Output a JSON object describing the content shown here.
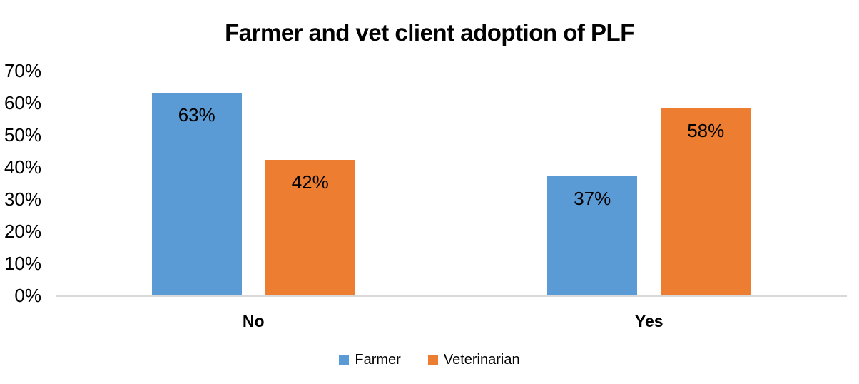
{
  "title": "Farmer and vet client adoption of PLF",
  "chart_data": {
    "type": "bar",
    "title": "Farmer and vet client adoption of PLF",
    "categories": [
      "No",
      "Yes"
    ],
    "series": [
      {
        "name": "Farmer",
        "color": "#5B9BD5",
        "values": [
          63,
          37
        ],
        "labels": [
          "63%",
          "37%"
        ]
      },
      {
        "name": "Veterinarian",
        "color": "#ED7D31",
        "values": [
          42,
          58
        ],
        "labels": [
          "42%",
          "58%"
        ]
      }
    ],
    "xlabel": "",
    "ylabel": "",
    "ylim": [
      0,
      70
    ],
    "ytick_step": 10,
    "ytick_labels": [
      "0%",
      "10%",
      "20%",
      "30%",
      "40%",
      "50%",
      "60%",
      "70%"
    ],
    "grid": false,
    "legend_position": "bottom",
    "data_labels_position": "inside-top",
    "axis_line_color": "#D9D9D9",
    "text_color": "#000000",
    "background_color": "#FFFFFF"
  }
}
